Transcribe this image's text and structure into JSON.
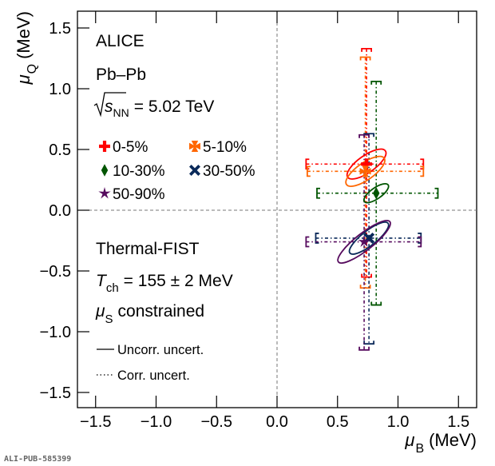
{
  "chart_data": {
    "type": "scatter",
    "title": "",
    "xlabel": {
      "symbol": "μ",
      "subscript": "B",
      "unit": "(MeV)"
    },
    "ylabel": {
      "symbol": "μ",
      "subscript": "Q",
      "unit": "(MeV)"
    },
    "xlim": [
      -1.65,
      1.65
    ],
    "ylim": [
      -1.65,
      1.65
    ],
    "x_ticks": [
      -1.5,
      -1.0,
      -0.5,
      0.0,
      0.5,
      1.0,
      1.5
    ],
    "x_tick_labels": [
      "−1.5",
      "−1.0",
      "−0.5",
      "0.0",
      "0.5",
      "1.0",
      "1.5"
    ],
    "y_ticks": [
      1.5,
      1.0,
      0.5,
      0.0,
      -0.5,
      -1.0,
      -1.5
    ],
    "y_tick_labels": [
      "1.5",
      "1.0",
      "0.5",
      "0.0",
      "−0.5",
      "−1.0",
      "−1.5"
    ],
    "zero_lines": true,
    "grid": false,
    "legend_placement": "upper-left",
    "series": [
      {
        "name": "0-5%",
        "marker": "cross",
        "color": "#ff0000",
        "x": 0.74,
        "y": 0.38,
        "corr_x": [
          0.24,
          1.21
        ],
        "corr_y": [
          -0.55,
          1.33
        ],
        "ellipse": {
          "rx": 0.19,
          "ry": 0.07,
          "angle_deg": -35
        }
      },
      {
        "name": "5-10%",
        "marker": "maltese-cross",
        "color": "#ff6600",
        "x": 0.73,
        "y": 0.32,
        "corr_x": [
          0.25,
          1.21
        ],
        "corr_y": [
          -0.64,
          1.26
        ],
        "ellipse": {
          "rx": 0.19,
          "ry": 0.07,
          "angle_deg": -35
        }
      },
      {
        "name": "10-30%",
        "marker": "diamond",
        "color": "#005500",
        "x": 0.82,
        "y": 0.14,
        "corr_x": [
          0.33,
          1.33
        ],
        "corr_y": [
          -0.78,
          1.06
        ],
        "ellipse": {
          "rx": 0.12,
          "ry": 0.045,
          "angle_deg": -35
        }
      },
      {
        "name": "30-50%",
        "marker": "x-cross",
        "color": "#0a2a5a",
        "x": 0.76,
        "y": -0.23,
        "corr_x": [
          0.32,
          1.19
        ],
        "corr_y": [
          -1.1,
          0.63
        ],
        "ellipse": {
          "rx": 0.2,
          "ry": 0.06,
          "angle_deg": -38
        }
      },
      {
        "name": "50-90%",
        "marker": "star",
        "color": "#560b5e",
        "x": 0.72,
        "y": -0.26,
        "corr_x": [
          0.24,
          1.19
        ],
        "corr_y": [
          -1.15,
          0.62
        ],
        "ellipse": {
          "rx": 0.27,
          "ry": 0.07,
          "angle_deg": -38
        }
      }
    ],
    "annotations": {
      "experiment": "ALICE",
      "system": "Pb–Pb",
      "energy_prefix": "s",
      "energy_sub": "NN",
      "energy_value": "= 5.02 TeV",
      "model": "Thermal-FIST",
      "temp_symbol": "T",
      "temp_sub": "ch",
      "temp_value": "= 155 ± 2 MeV",
      "mus_symbol": "μ",
      "mus_sub": "S",
      "mus_text": "constrained",
      "uncorr_label": "Uncorr. uncert.",
      "corr_label": "Corr. uncert."
    }
  },
  "footer": {
    "id_label": "ALI-PUB-585399"
  }
}
